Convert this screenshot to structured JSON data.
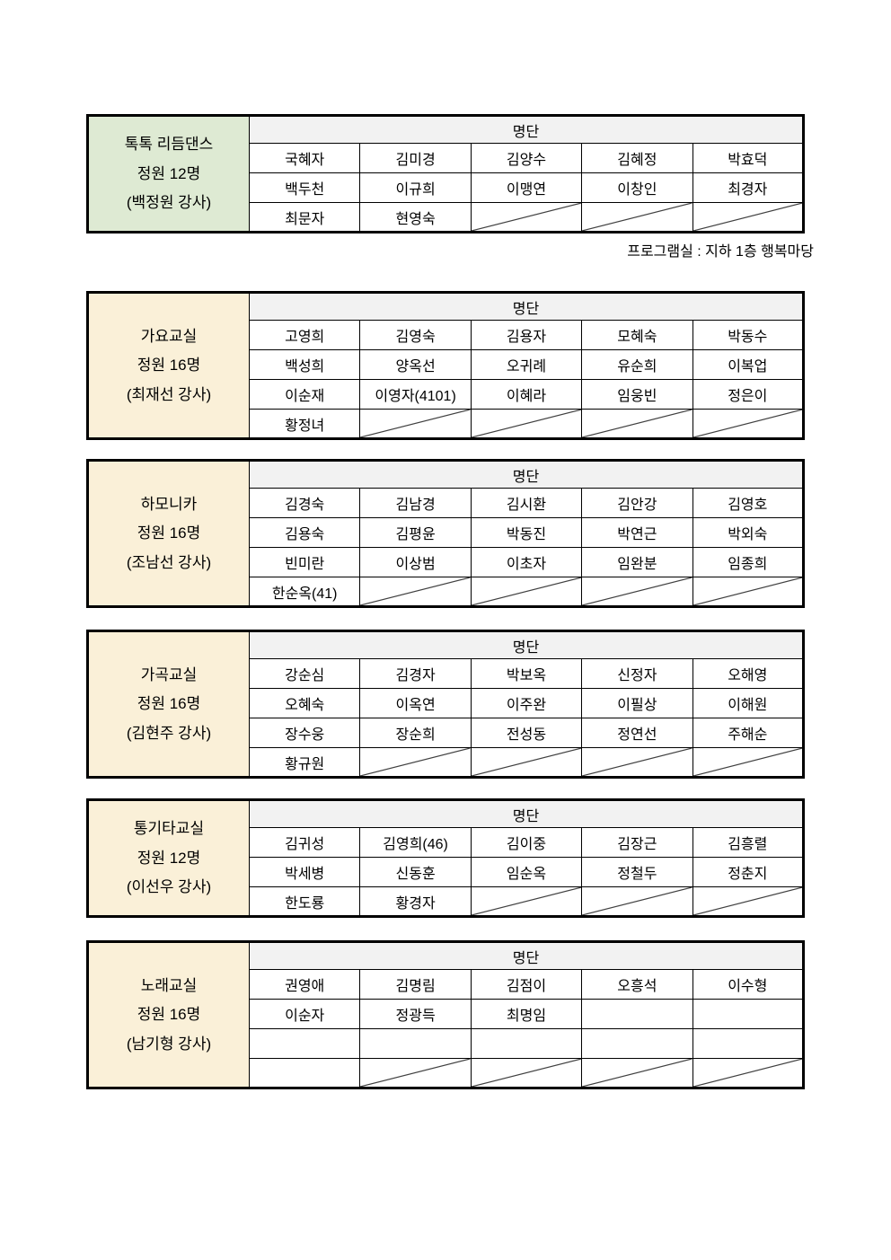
{
  "page": {
    "location_note": "프로그램실 : 지하 1층 행복마당"
  },
  "colors": {
    "green_header": "#deead3",
    "beige_header": "#faf0d8",
    "roster_header_bg": "#f2f2f2",
    "border": "#000000",
    "slash_line": "#404040"
  },
  "tables": [
    {
      "class_name": "톡톡 리듬댄스",
      "capacity": "정원 12명",
      "instructor": "(백정원 강사)",
      "header_style": "green",
      "roster_header": "명단",
      "rows": [
        [
          {
            "text": "국혜자"
          },
          {
            "text": "김미경"
          },
          {
            "text": "김양수"
          },
          {
            "text": "김혜정"
          },
          {
            "text": "박효덕"
          }
        ],
        [
          {
            "text": "백두천"
          },
          {
            "text": "이규희"
          },
          {
            "text": "이맹연"
          },
          {
            "text": "이창인"
          },
          {
            "text": "최경자"
          }
        ],
        [
          {
            "text": "최문자"
          },
          {
            "text": "현영숙"
          },
          {
            "text": "",
            "slash": true
          },
          {
            "text": "",
            "slash": true
          },
          {
            "text": "",
            "slash": true
          }
        ]
      ]
    },
    {
      "class_name": "가요교실",
      "capacity": "정원 16명",
      "instructor": "(최재선 강사)",
      "header_style": "beige",
      "roster_header": "명단",
      "rows": [
        [
          {
            "text": "고영희"
          },
          {
            "text": "김영숙"
          },
          {
            "text": "김용자"
          },
          {
            "text": "모혜숙"
          },
          {
            "text": "박동수"
          }
        ],
        [
          {
            "text": "백성희"
          },
          {
            "text": "양옥선"
          },
          {
            "text": "오귀례"
          },
          {
            "text": "유순희"
          },
          {
            "text": "이복업"
          }
        ],
        [
          {
            "text": "이순재"
          },
          {
            "text": "이영자(4101)"
          },
          {
            "text": "이혜라"
          },
          {
            "text": "임웅빈"
          },
          {
            "text": "정은이"
          }
        ],
        [
          {
            "text": "황정녀"
          },
          {
            "text": "",
            "slash": true
          },
          {
            "text": "",
            "slash": true
          },
          {
            "text": "",
            "slash": true
          },
          {
            "text": "",
            "slash": true
          }
        ]
      ]
    },
    {
      "class_name": "하모니카",
      "capacity": "정원 16명",
      "instructor": "(조남선 강사)",
      "header_style": "beige",
      "roster_header": "명단",
      "rows": [
        [
          {
            "text": "김경숙"
          },
          {
            "text": "김남경"
          },
          {
            "text": "김시환"
          },
          {
            "text": "김안강"
          },
          {
            "text": "김영호"
          }
        ],
        [
          {
            "text": "김용숙"
          },
          {
            "text": "김평윤"
          },
          {
            "text": "박동진"
          },
          {
            "text": "박연근"
          },
          {
            "text": "박외숙"
          }
        ],
        [
          {
            "text": "빈미란"
          },
          {
            "text": "이상범"
          },
          {
            "text": "이초자"
          },
          {
            "text": "임완분"
          },
          {
            "text": "임종희"
          }
        ],
        [
          {
            "text": "한순옥(41)"
          },
          {
            "text": "",
            "slash": true
          },
          {
            "text": "",
            "slash": true
          },
          {
            "text": "",
            "slash": true
          },
          {
            "text": "",
            "slash": true
          }
        ]
      ]
    },
    {
      "class_name": "가곡교실",
      "capacity": "정원 16명",
      "instructor": "(김현주 강사)",
      "header_style": "beige",
      "roster_header": "명단",
      "rows": [
        [
          {
            "text": "강순심"
          },
          {
            "text": "김경자"
          },
          {
            "text": "박보옥"
          },
          {
            "text": "신정자"
          },
          {
            "text": "오해영"
          }
        ],
        [
          {
            "text": "오혜숙"
          },
          {
            "text": "이옥연"
          },
          {
            "text": "이주완"
          },
          {
            "text": "이필상"
          },
          {
            "text": "이해원"
          }
        ],
        [
          {
            "text": "장수웅"
          },
          {
            "text": "장순희"
          },
          {
            "text": "전성동"
          },
          {
            "text": "정연선"
          },
          {
            "text": "주해순"
          }
        ],
        [
          {
            "text": "황규원"
          },
          {
            "text": "",
            "slash": true
          },
          {
            "text": "",
            "slash": true
          },
          {
            "text": "",
            "slash": true
          },
          {
            "text": "",
            "slash": true
          }
        ]
      ]
    },
    {
      "class_name": "통기타교실",
      "capacity": "정원 12명",
      "instructor": "(이선우 강사)",
      "header_style": "beige",
      "roster_header": "명단",
      "rows": [
        [
          {
            "text": "김귀성"
          },
          {
            "text": "김영희(46)"
          },
          {
            "text": "김이중"
          },
          {
            "text": "김장근"
          },
          {
            "text": "김흥렬"
          }
        ],
        [
          {
            "text": "박세병"
          },
          {
            "text": "신동훈"
          },
          {
            "text": "임순옥"
          },
          {
            "text": "정철두"
          },
          {
            "text": "정춘지"
          }
        ],
        [
          {
            "text": "한도룡"
          },
          {
            "text": "황경자"
          },
          {
            "text": "",
            "slash": true
          },
          {
            "text": "",
            "slash": true
          },
          {
            "text": "",
            "slash": true
          }
        ]
      ]
    },
    {
      "class_name": "노래교실",
      "capacity": "정원 16명",
      "instructor": "(남기형 강사)",
      "header_style": "beige",
      "roster_header": "명단",
      "rows": [
        [
          {
            "text": "권영애"
          },
          {
            "text": "김명림"
          },
          {
            "text": "김점이"
          },
          {
            "text": "오흥석"
          },
          {
            "text": "이수형"
          }
        ],
        [
          {
            "text": "이순자"
          },
          {
            "text": "정광득"
          },
          {
            "text": "최명임"
          },
          {
            "text": ""
          },
          {
            "text": ""
          }
        ],
        [
          {
            "text": ""
          },
          {
            "text": ""
          },
          {
            "text": ""
          },
          {
            "text": ""
          },
          {
            "text": ""
          }
        ],
        [
          {
            "text": ""
          },
          {
            "text": "",
            "slash": true
          },
          {
            "text": "",
            "slash": true
          },
          {
            "text": "",
            "slash": true
          },
          {
            "text": "",
            "slash": true
          }
        ]
      ]
    }
  ]
}
